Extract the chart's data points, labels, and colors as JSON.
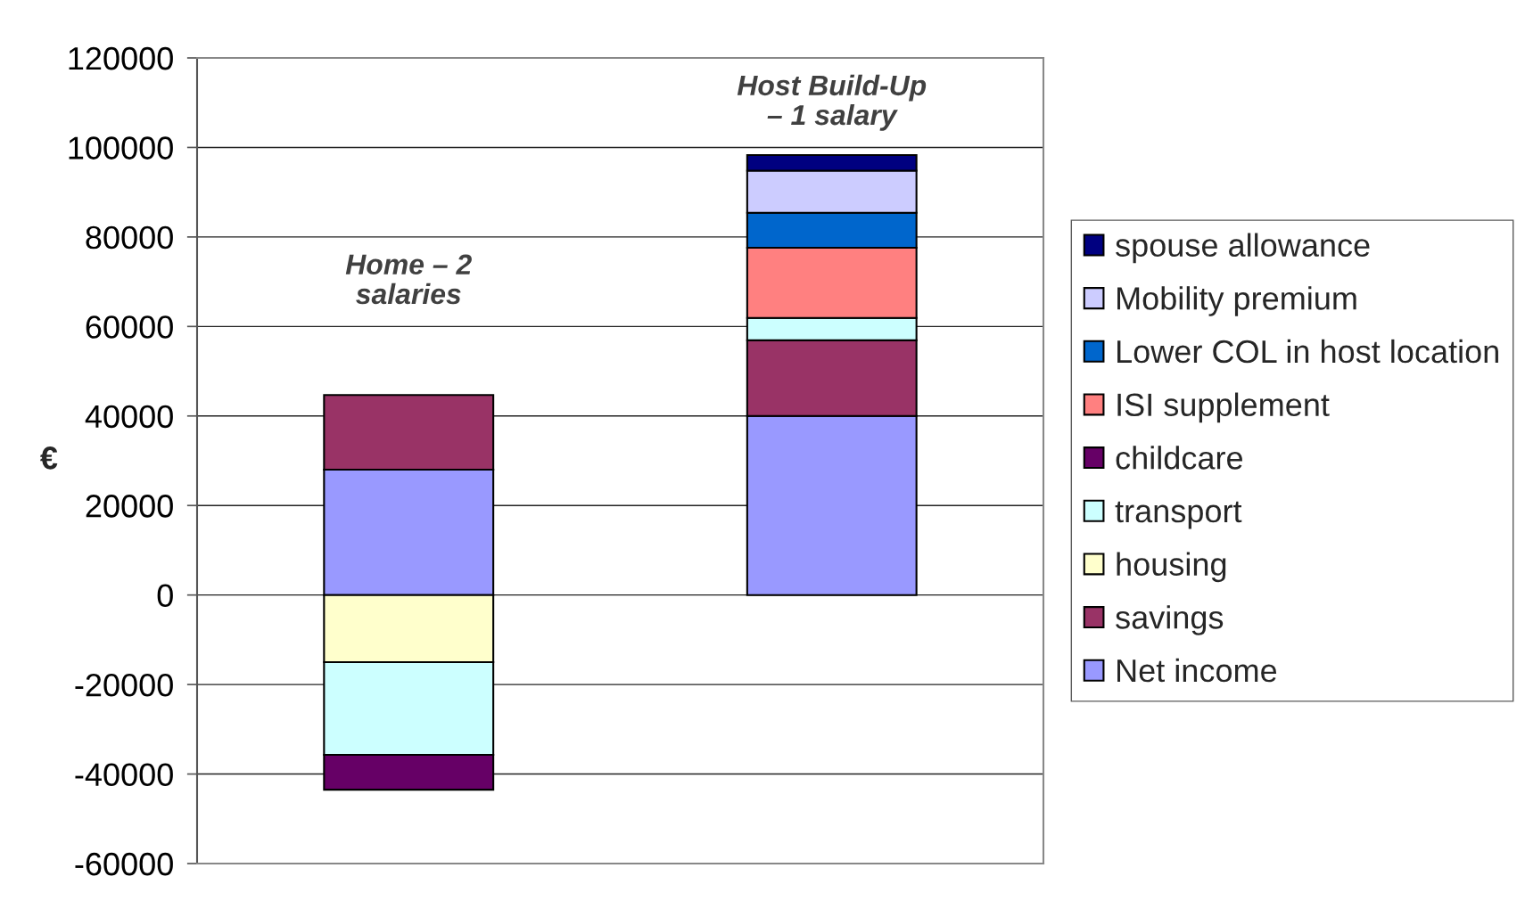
{
  "chart_data": {
    "type": "bar",
    "stacked": true,
    "categories": [
      null,
      null
    ],
    "ylabel": "€",
    "series": [
      {
        "name": "Net income",
        "color": "#9999ff",
        "values": [
          28000,
          40000
        ]
      },
      {
        "name": "savings",
        "color": "#993366",
        "values": [
          16700,
          16900
        ]
      },
      {
        "name": "housing",
        "color": "#ffffcc",
        "values": [
          -15000,
          null
        ]
      },
      {
        "name": "transport",
        "color": "#ccffff",
        "values": [
          -20700,
          5000
        ]
      },
      {
        "name": "childcare",
        "color": "#660066",
        "values": [
          -7800,
          null
        ]
      },
      {
        "name": "ISI supplement",
        "color": "#ff8080",
        "values": [
          null,
          15700
        ]
      },
      {
        "name": "Lower COL in host location",
        "color": "#0066cc",
        "values": [
          null,
          7800
        ]
      },
      {
        "name": "Mobility premium",
        "color": "#ccccff",
        "values": [
          null,
          9400
        ]
      },
      {
        "name": "spouse allowance",
        "color": "#000080",
        "values": [
          null,
          3500
        ]
      }
    ],
    "ylim": [
      -60000,
      120000
    ],
    "yticks": [
      -60000,
      -40000,
      -20000,
      0,
      20000,
      40000,
      60000,
      80000,
      100000,
      120000
    ],
    "grid": "y",
    "legend": "right",
    "tick_labels": "y",
    "annotations": [
      "Home – 2\nsalaries",
      "Host Build-Up\n– 1 salary"
    ]
  }
}
